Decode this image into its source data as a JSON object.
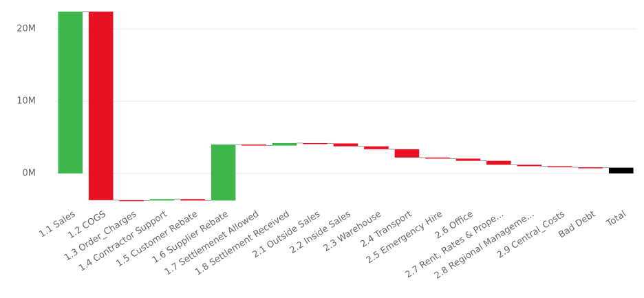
{
  "chart_data": {
    "type": "waterfall",
    "categories": [
      "1.1 Sales",
      "1.2 COGS",
      "1.3 Order_Charges",
      "1.4 Contractor Support",
      "1.5 Customer Rebate",
      "1.6 Supplier Rebate",
      "1.7 Settlemenet Allowed",
      "1.8 Settlement Received",
      "2.1 Outside Sales",
      "2.2 Inside Sales",
      "2.3 Warehouse",
      "2.4 Transport",
      "2.5 Emergency Hire",
      "2.6 Office",
      "2.7 Rent, Rates & Prope...",
      "2.8 Regional Manageme...",
      "2.9 Central_Costs",
      "Bad Debt",
      "Total"
    ],
    "values": [
      22.4,
      -26.1,
      -0.05,
      0.2,
      -0.2,
      7.75,
      -0.15,
      0.35,
      -0.05,
      -0.4,
      -0.4,
      -1.15,
      -0.15,
      -0.3,
      -0.55,
      -0.2,
      -0.15,
      -0.05,
      0.8
    ],
    "last_is_total": true,
    "increase_color": "#3db64b",
    "decrease_color": "#e81123",
    "total_color": "#000000",
    "ylim": [
      -4.19,
      24.0
    ],
    "yticks": [
      {
        "value": 0,
        "label": "0M"
      },
      {
        "value": 10,
        "label": "10M"
      },
      {
        "value": 20,
        "label": "20M"
      }
    ],
    "grid": true
  }
}
